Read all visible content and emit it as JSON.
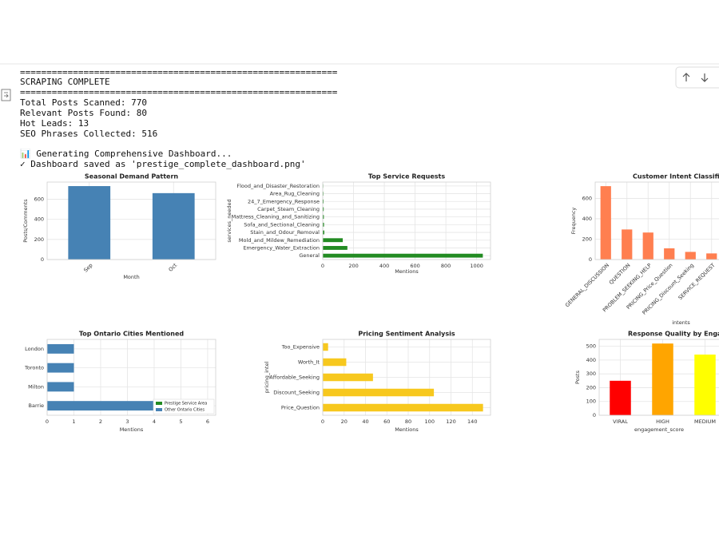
{
  "output": {
    "lines": [
      "============================================================",
      "SCRAPING COMPLETE",
      "============================================================",
      "Total Posts Scanned: 770",
      "Relevant Posts Found: 80",
      "Hot Leads: 13",
      "SEO Phrases Collected: 516",
      "📊 Generating Comprehensive Dashboard...",
      "✓ Dashboard saved as 'prestige_complete_dashboard.png'"
    ]
  },
  "chart_data": [
    {
      "type": "bar",
      "title": "Seasonal Demand Pattern",
      "x_label": "Month",
      "y_label": "Posts/Comments",
      "categories": [
        "Sep",
        "Oct"
      ],
      "values": [
        730,
        660
      ],
      "color": "#4682b4",
      "ylim": [
        0,
        770
      ],
      "yticks": [
        0,
        200,
        400,
        600
      ],
      "grid": true,
      "rotate_labels": true
    },
    {
      "type": "barh",
      "title": "Top Service Requests",
      "x_label": "Mentions",
      "y_label": "services_needed",
      "categories": [
        "Flood_and_Disaster_Restoration",
        "Area_Rug_Cleaning",
        "24_7_Emergency_Response",
        "Carpet_Steam_Cleaning",
        "Mattress_Cleaning_and_Sanitizing",
        "Sofa_and_Sectional_Cleaning",
        "Stain_and_Odour_Removal",
        "Mold_and_Mildew_Remediation",
        "Emergency_Water_Extraction",
        "General"
      ],
      "values": [
        3,
        4,
        5,
        6,
        7,
        8,
        10,
        130,
        160,
        1040
      ],
      "color": "#228b22",
      "xlim": [
        0,
        1090
      ],
      "xticks": [
        0,
        200,
        400,
        600,
        800,
        1000
      ],
      "grid": true
    },
    {
      "type": "bar",
      "title": "Customer Intent Classificat",
      "x_label": "intents",
      "y_label": "Frequency",
      "categories": [
        "GENERAL_DISCUSSION",
        "QUESTION",
        "PROBLEM_SEEKING_HELP",
        "PRICING_Price_Question",
        "PRICING_Discount_Seeking",
        "SERVICE_REQUEST"
      ],
      "values": [
        720,
        295,
        265,
        110,
        75,
        60
      ],
      "color": "#ff7f50",
      "ylim": [
        0,
        760
      ],
      "yticks": [
        0,
        200,
        400,
        600
      ],
      "grid": true,
      "rotate_labels": true
    },
    {
      "type": "barh",
      "title": "Top Ontario Cities Mentioned",
      "x_label": "Mentions",
      "categories": [
        "London",
        "Toronto",
        "Milton",
        "Barrie"
      ],
      "values": [
        1,
        1,
        1,
        4
      ],
      "color": "#4682b4",
      "xlim": [
        0,
        6.3
      ],
      "xticks": [
        0,
        1,
        2,
        3,
        4,
        5,
        6
      ],
      "grid": true,
      "legend": {
        "position": "lower right",
        "entries": [
          {
            "name": "Prestige Service Area",
            "color": "#228b22"
          },
          {
            "name": "Other Ontario Cities",
            "color": "#4682b4"
          }
        ]
      }
    },
    {
      "type": "barh",
      "title": "Pricing Sentiment Analysis",
      "x_label": "Mentions",
      "y_label": "pricing_intel",
      "categories": [
        "Too_Expensive",
        "Worth_It",
        "Affordable_Seeking",
        "Discount_Seeking",
        "Price_Question"
      ],
      "values": [
        5,
        22,
        47,
        104,
        150
      ],
      "color": "#f7c81e",
      "xlim": [
        0,
        157
      ],
      "xticks": [
        0,
        20,
        40,
        60,
        80,
        100,
        120,
        140
      ],
      "grid": true
    },
    {
      "type": "bar",
      "title": "Response Quality by Engage",
      "x_label": "engagement_score",
      "y_label": "Posts",
      "categories": [
        "VIRAL",
        "HIGH",
        "MEDIUM"
      ],
      "values": [
        250,
        520,
        440
      ],
      "colors": [
        "#ff0000",
        "#ffa500",
        "#ffff00"
      ],
      "ylim": [
        0,
        550
      ],
      "yticks": [
        0,
        100,
        200,
        300,
        400,
        500
      ],
      "grid": true
    }
  ]
}
